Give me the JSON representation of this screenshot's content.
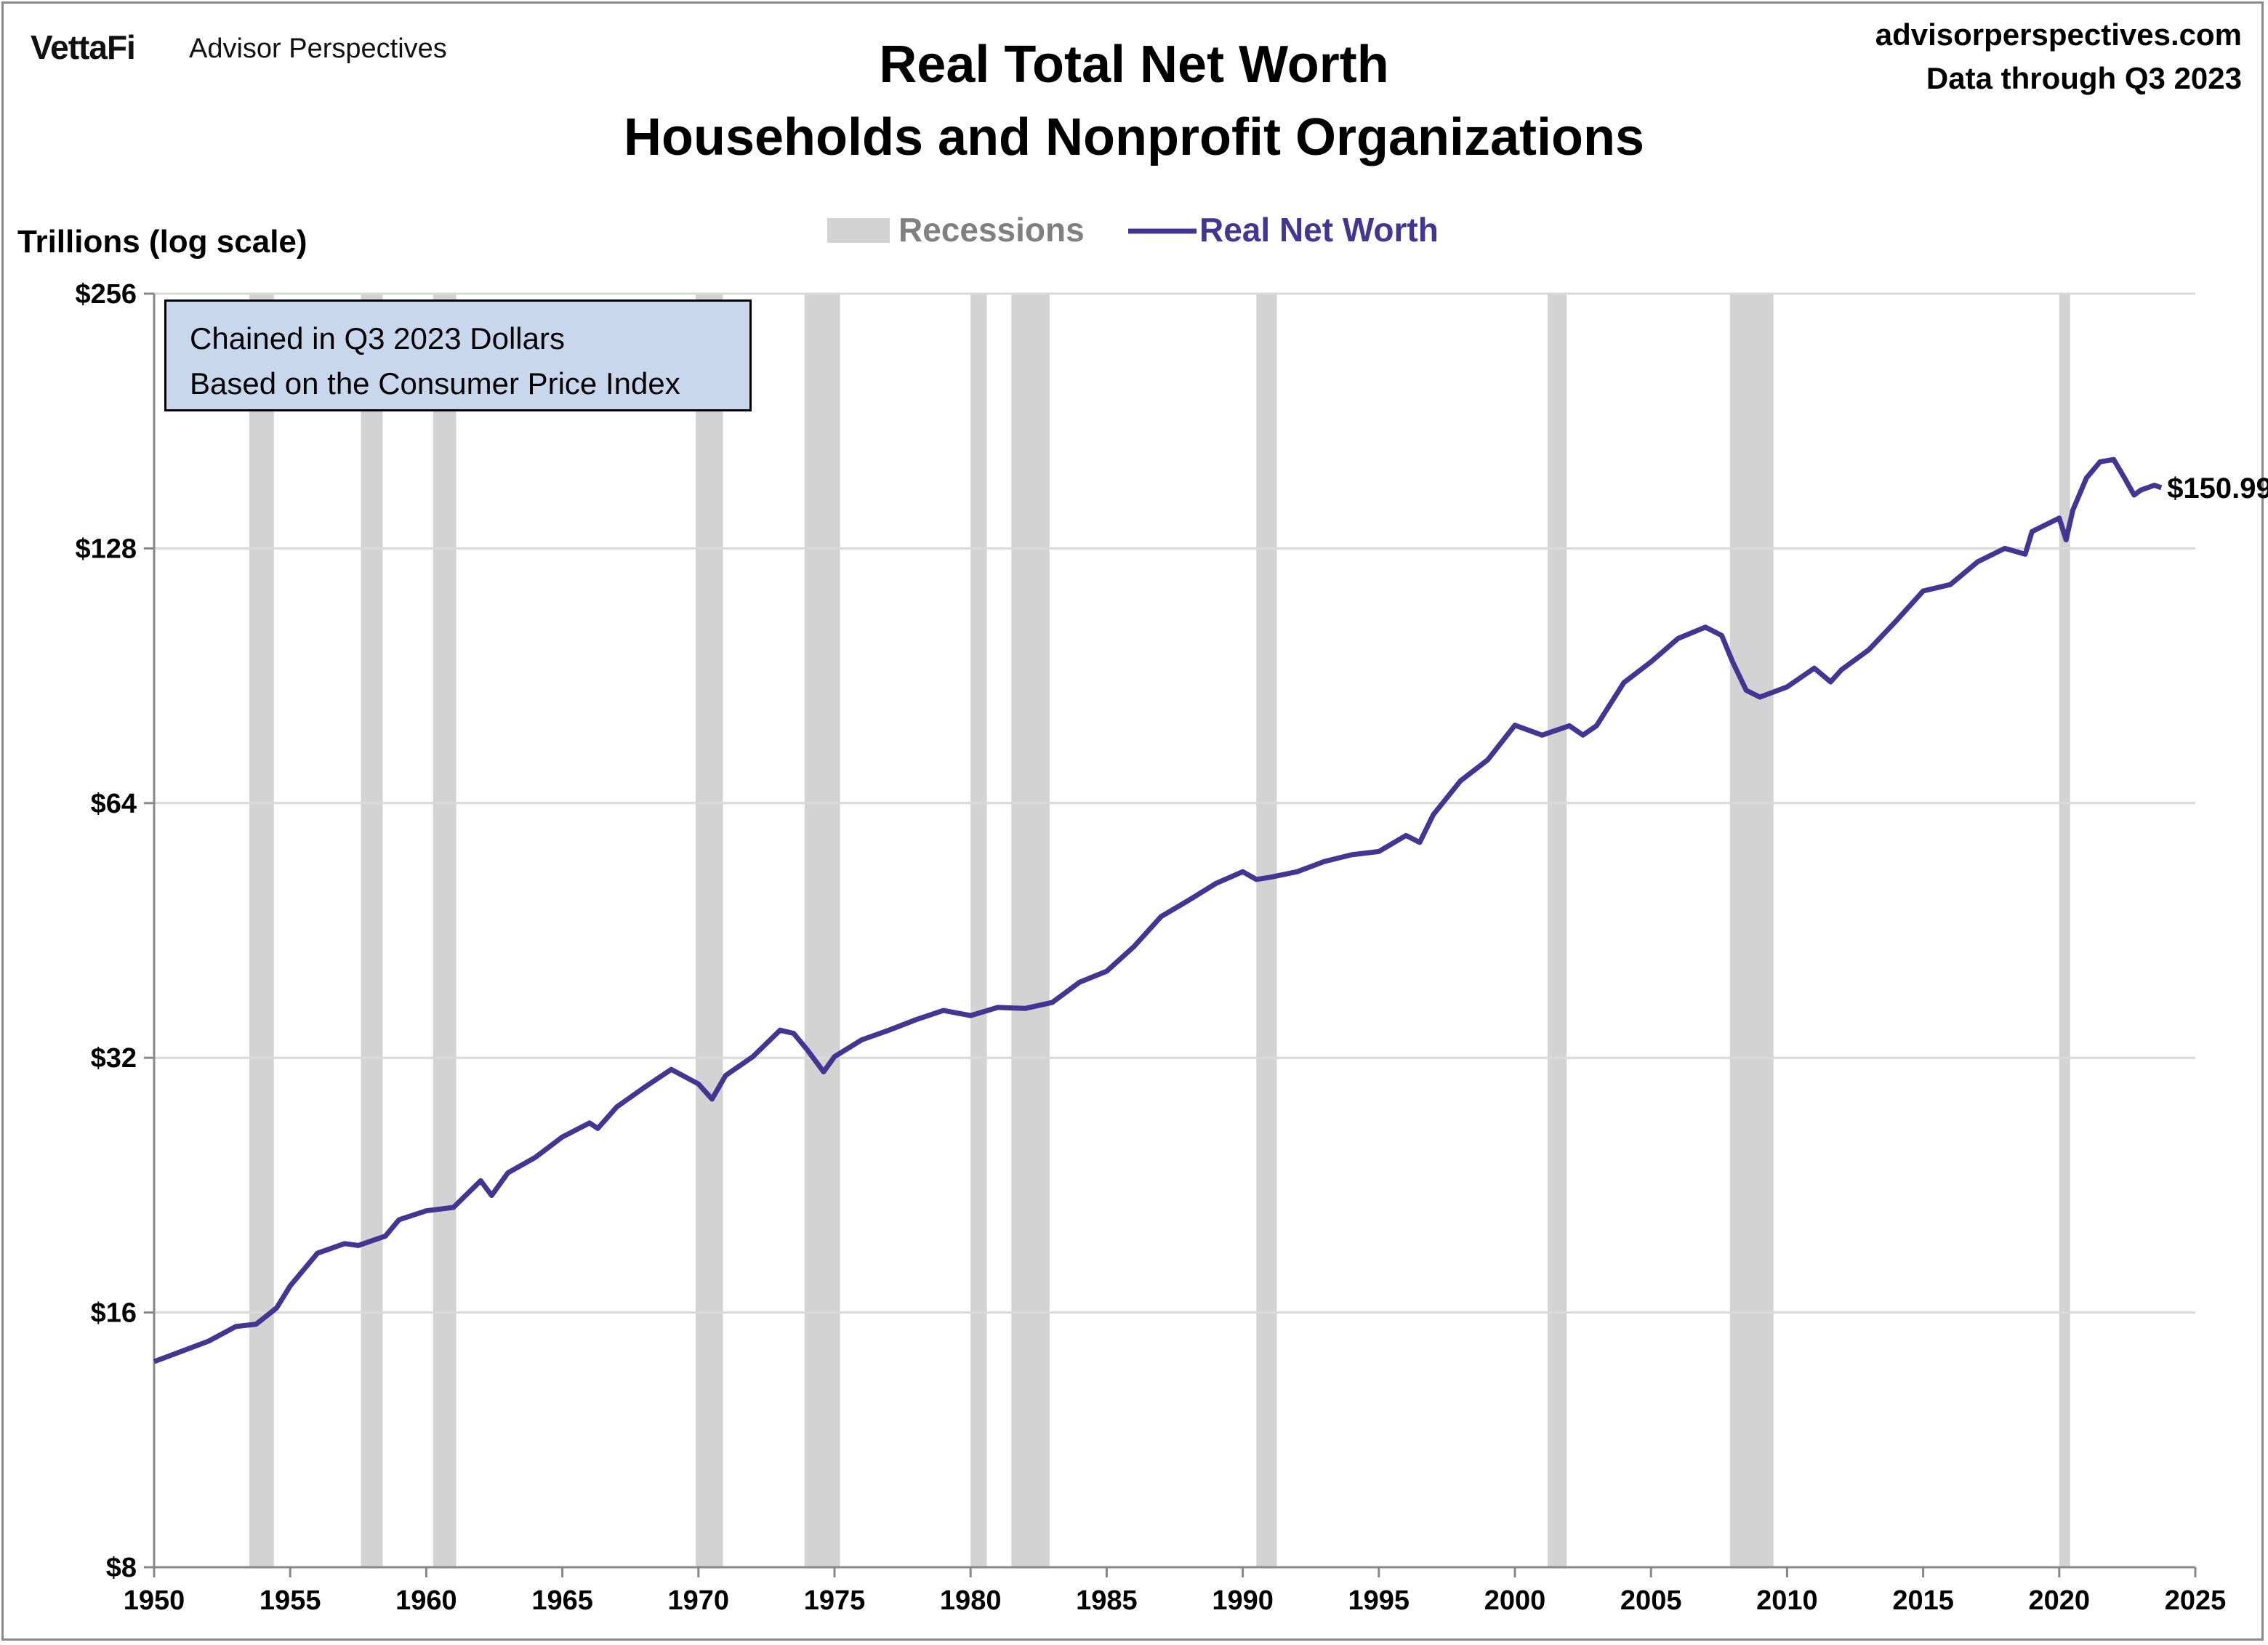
{
  "header": {
    "logo": "VettaFi",
    "logo_sub": "Advisor Perspectives",
    "site": "advisorperspectives.com",
    "data_through": "Data through Q3 2023"
  },
  "note": {
    "line1": "Chained in Q3 2023 Dollars",
    "line2": "Based on the Consumer Price Index"
  },
  "colors": {
    "line": "#443592",
    "recession": "#d3d3d3",
    "note_bg": "#c9d7ec",
    "grid": "#d9d9d9"
  },
  "chart_data": {
    "type": "line",
    "title": "Real Total Net Worth",
    "subtitle": "Households and Nonprofit Organizations",
    "ylabel": "Trillions (log scale)",
    "xlabel": "",
    "yscale": "log2",
    "ylim": [
      8,
      256
    ],
    "xlim": [
      1950,
      2025
    ],
    "grid": "horizontal",
    "legend_position": "top-center",
    "legend": [
      "Recessions",
      "Real Net Worth"
    ],
    "x_ticks": [
      "1950",
      "1955",
      "1960",
      "1965",
      "1970",
      "1975",
      "1980",
      "1985",
      "1990",
      "1995",
      "2000",
      "2005",
      "2010",
      "2015",
      "2020",
      "2025"
    ],
    "y_ticks": [
      {
        "value": 8,
        "label": "$8"
      },
      {
        "value": 16,
        "label": "$16"
      },
      {
        "value": 32,
        "label": "$32"
      },
      {
        "value": 64,
        "label": "$64"
      },
      {
        "value": 128,
        "label": "$128"
      },
      {
        "value": 256,
        "label": "$256"
      }
    ],
    "last_value_label": "$150.99",
    "recessions": [
      [
        1953.5,
        1954.4
      ],
      [
        1957.6,
        1958.4
      ],
      [
        1960.25,
        1961.1
      ],
      [
        1969.9,
        1970.9
      ],
      [
        1973.9,
        1975.2
      ],
      [
        1980.0,
        1980.6
      ],
      [
        1981.5,
        1982.9
      ],
      [
        1990.5,
        1991.25
      ],
      [
        2001.2,
        2001.9
      ],
      [
        2007.9,
        2009.5
      ],
      [
        2020.0,
        2020.4
      ]
    ],
    "series": [
      {
        "name": "Real Net Worth",
        "x": [
          1950,
          1952,
          1953,
          1953.75,
          1954.5,
          1955,
          1956,
          1957,
          1957.5,
          1958.5,
          1959,
          1960,
          1961,
          1962,
          1962.4,
          1963,
          1964,
          1965,
          1966,
          1966.3,
          1967,
          1968,
          1969,
          1970,
          1970.5,
          1971,
          1972,
          1973,
          1973.5,
          1974,
          1974.6,
          1975,
          1976,
          1977,
          1978,
          1979,
          1980,
          1981,
          1982,
          1983,
          1984,
          1985,
          1986,
          1987,
          1988,
          1989,
          1990,
          1990.5,
          1991,
          1992,
          1993,
          1994,
          1995,
          1996,
          1996.5,
          1997,
          1998,
          1999,
          2000,
          2001,
          2002,
          2002.5,
          2003,
          2004,
          2005,
          2006,
          2007,
          2007.6,
          2008,
          2008.5,
          2009,
          2010,
          2011,
          2011.6,
          2012,
          2013,
          2014,
          2015,
          2016,
          2017,
          2018,
          2018.75,
          2019,
          2020,
          2020.25,
          2020.5,
          2021,
          2021.5,
          2022,
          2022.4,
          2022.75,
          2023,
          2023.5,
          2023.75
        ],
        "values": [
          14.0,
          14.8,
          15.4,
          15.5,
          16.2,
          17.2,
          18.8,
          19.3,
          19.2,
          19.7,
          20.6,
          21.1,
          21.3,
          22.9,
          22.0,
          23.4,
          24.4,
          25.8,
          26.8,
          26.4,
          28.0,
          29.5,
          31.0,
          29.8,
          28.6,
          30.5,
          32.1,
          34.5,
          34.2,
          32.7,
          30.8,
          32.1,
          33.6,
          34.5,
          35.5,
          36.4,
          35.9,
          36.7,
          36.6,
          37.2,
          39.3,
          40.5,
          43.3,
          47.0,
          49.1,
          51.4,
          53.1,
          52.0,
          52.3,
          53.1,
          54.6,
          55.6,
          56.1,
          58.6,
          57.5,
          62.0,
          68.0,
          72.0,
          79.1,
          77.0,
          79.0,
          77.0,
          79.0,
          88.8,
          94.0,
          100.2,
          103.3,
          101.0,
          94.0,
          87.0,
          85.4,
          87.8,
          92.4,
          89.0,
          92.0,
          97.1,
          105.0,
          114.0,
          116.0,
          123.4,
          128.0,
          126.0,
          134.0,
          139.0,
          131.0,
          142.0,
          155.0,
          162.0,
          163.0,
          155.0,
          148.0,
          150.0,
          152.0,
          150.99
        ]
      }
    ]
  }
}
